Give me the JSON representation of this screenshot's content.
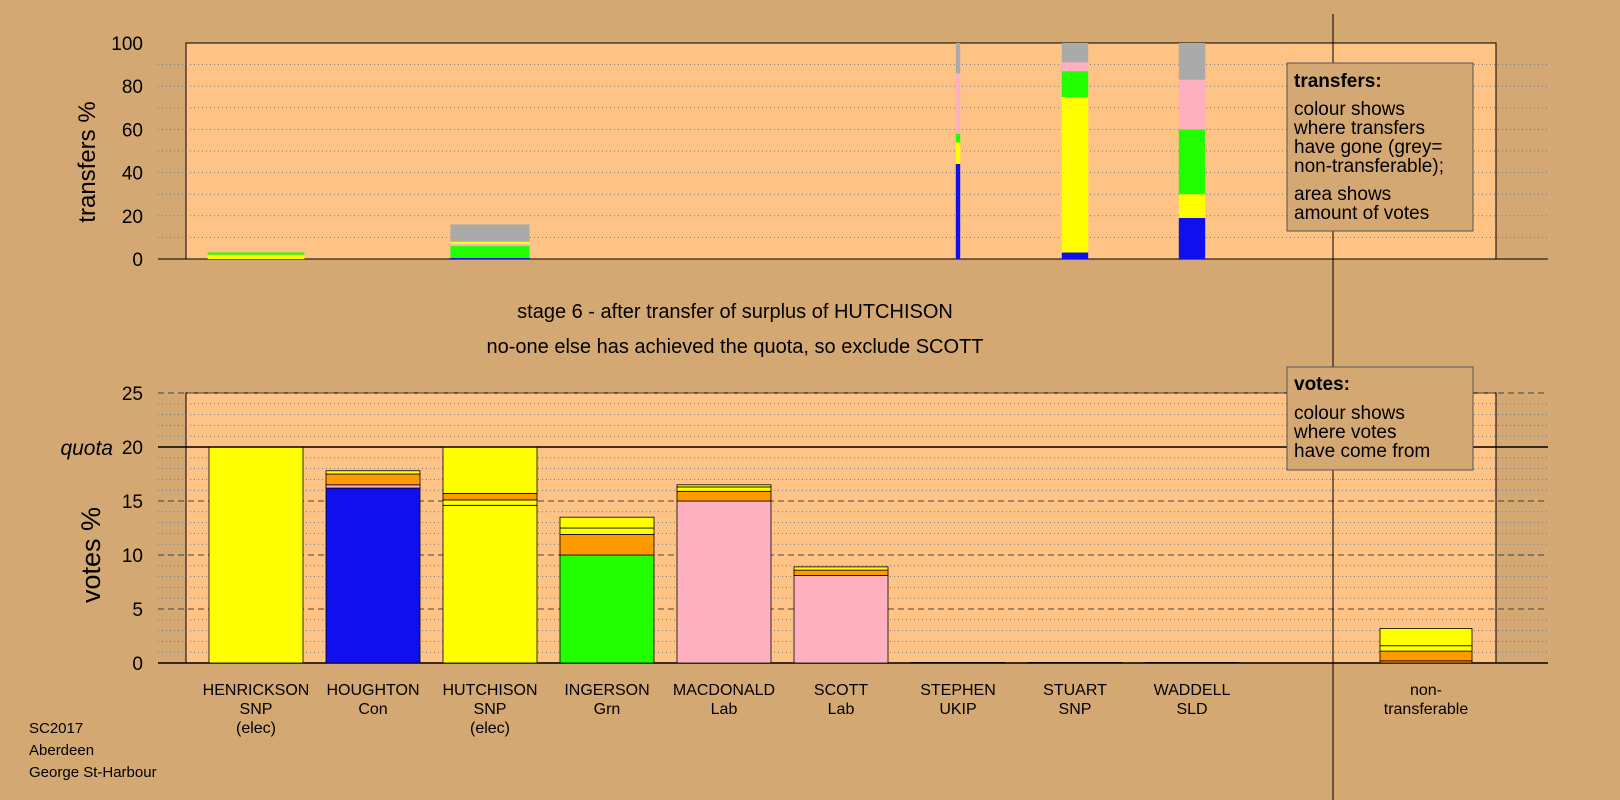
{
  "chart_data": [
    {
      "type": "bar",
      "panel": "transfers",
      "ylabel": "transfers %",
      "ylim": [
        0,
        100
      ],
      "yticks": [
        0,
        20,
        40,
        60,
        80,
        100
      ],
      "grid": "dotted",
      "colors": {
        "Con": "#1010EE",
        "SNP": "#FFFF00",
        "Grn": "#22FF00",
        "Lab": "#FFB0C0",
        "non-transferable": "#AAAAAA"
      },
      "bars": [
        {
          "candidate": "HENRICKSON",
          "width_votes_pct": 2.2,
          "segments": [
            {
              "party": "SNP",
              "value": 2
            },
            {
              "party": "Grn",
              "value": 1
            }
          ]
        },
        {
          "candidate": "HUTCHISON",
          "width_votes_pct": 1.8,
          "segments": [
            {
              "party": "Con",
              "value": 0.5
            },
            {
              "party": "Grn",
              "value": 5.5
            },
            {
              "party": "Lab",
              "value": 1
            },
            {
              "party": "SNP",
              "value": 1
            },
            {
              "party": "non-transferable",
              "value": 8
            }
          ]
        },
        {
          "candidate": "STEPHEN",
          "width_votes_pct": 0.1,
          "segments": [
            {
              "party": "Con",
              "value": 44
            },
            {
              "party": "SNP",
              "value": 10
            },
            {
              "party": "Grn",
              "value": 4
            },
            {
              "party": "Lab",
              "value": 28
            },
            {
              "party": "non-transferable",
              "value": 14
            }
          ]
        },
        {
          "candidate": "STUART",
          "width_votes_pct": 0.6,
          "segments": [
            {
              "party": "Con",
              "value": 3
            },
            {
              "party": "SNP",
              "value": 72
            },
            {
              "party": "Grn",
              "value": 12
            },
            {
              "party": "Lab",
              "value": 4
            },
            {
              "party": "non-transferable",
              "value": 9
            }
          ]
        },
        {
          "candidate": "WADDELL",
          "width_votes_pct": 0.6,
          "segments": [
            {
              "party": "Con",
              "value": 19
            },
            {
              "party": "SNP",
              "value": 11
            },
            {
              "party": "Grn",
              "value": 30
            },
            {
              "party": "Lab",
              "value": 23
            },
            {
              "party": "non-transferable",
              "value": 17
            }
          ]
        }
      ]
    },
    {
      "type": "bar",
      "panel": "votes",
      "ylabel": "votes %",
      "ylim": [
        0,
        25
      ],
      "yticks": [
        0,
        5,
        10,
        15,
        20,
        25
      ],
      "quota": 20,
      "quota_label": "quota",
      "grid": "dashed",
      "colors": {
        "SNP": "#FFFF00",
        "Con": "#1010EE",
        "Grn": "#22FF00",
        "Lab": "#FFB0C0",
        "transfer": "#FF9900"
      },
      "categories": [
        "HENRICKSON",
        "HOUGHTON",
        "HUTCHISON",
        "INGERSON",
        "MACDONALD",
        "SCOTT",
        "STEPHEN",
        "STUART",
        "WADDELL",
        "non-transferable"
      ],
      "stacks": [
        [
          {
            "color": "SNP",
            "value": 20
          }
        ],
        [
          {
            "color": "Con",
            "value": 16.2
          },
          {
            "color": "Lab",
            "value": 0.3
          },
          {
            "color": "transfer",
            "value": 1.0
          },
          {
            "color": "SNP",
            "value": 0.3
          }
        ],
        [
          {
            "color": "SNP",
            "value": 14.6
          },
          {
            "color": "SNP",
            "value": 0.5
          },
          {
            "color": "transfer",
            "value": 0.6
          },
          {
            "color": "SNP",
            "value": 4.3
          }
        ],
        [
          {
            "color": "Grn",
            "value": 10.0
          },
          {
            "color": "transfer",
            "value": 1.9
          },
          {
            "color": "SNP",
            "value": 0.6
          },
          {
            "color": "SNP",
            "value": 1.0
          }
        ],
        [
          {
            "color": "Lab",
            "value": 15.0
          },
          {
            "color": "transfer",
            "value": 0.9
          },
          {
            "color": "SNP",
            "value": 0.4
          },
          {
            "color": "SNP",
            "value": 0.2
          }
        ],
        [
          {
            "color": "Lab",
            "value": 8.1
          },
          {
            "color": "transfer",
            "value": 0.5
          },
          {
            "color": "SNP",
            "value": 0.3
          }
        ],
        [
          {
            "color": "SNP",
            "value": 0.05
          }
        ],
        [
          {
            "color": "SNP",
            "value": 0.05
          }
        ],
        [
          {
            "color": "SNP",
            "value": 0.05
          }
        ],
        [
          {
            "color": "transfer",
            "value": 0.2
          },
          {
            "color": "transfer",
            "value": 0.9
          },
          {
            "color": "SNP",
            "value": 0.5
          },
          {
            "color": "SNP",
            "value": 1.6
          }
        ]
      ]
    }
  ],
  "candidates": [
    {
      "name": "HENRICKSON",
      "party": "SNP",
      "note": "(elec)"
    },
    {
      "name": "HOUGHTON",
      "party": "Con",
      "note": ""
    },
    {
      "name": "HUTCHISON",
      "party": "SNP",
      "note": "(elec)"
    },
    {
      "name": "INGERSON",
      "party": "Grn",
      "note": ""
    },
    {
      "name": "MACDONALD",
      "party": "Lab",
      "note": ""
    },
    {
      "name": "SCOTT",
      "party": "Lab",
      "note": ""
    },
    {
      "name": "STEPHEN",
      "party": "UKIP",
      "note": ""
    },
    {
      "name": "STUART",
      "party": "SNP",
      "note": ""
    },
    {
      "name": "WADDELL",
      "party": "SLD",
      "note": ""
    }
  ],
  "nontransferable_label": [
    "non-",
    "transferable"
  ],
  "stage_text": [
    "stage 6 - after transfer of surplus of HUTCHISON",
    "no-one else has achieved the quota, so exclude SCOTT"
  ],
  "legend_transfers": {
    "title": "transfers:",
    "lines": [
      "colour shows",
      "where transfers",
      "have gone (grey=",
      "non-transferable);",
      "area shows",
      "amount of votes"
    ]
  },
  "legend_votes": {
    "title": "votes:",
    "lines": [
      "colour shows",
      "where votes",
      "have come from"
    ]
  },
  "footer": [
    "SC2017",
    "Aberdeen",
    "George St-Harbour"
  ]
}
